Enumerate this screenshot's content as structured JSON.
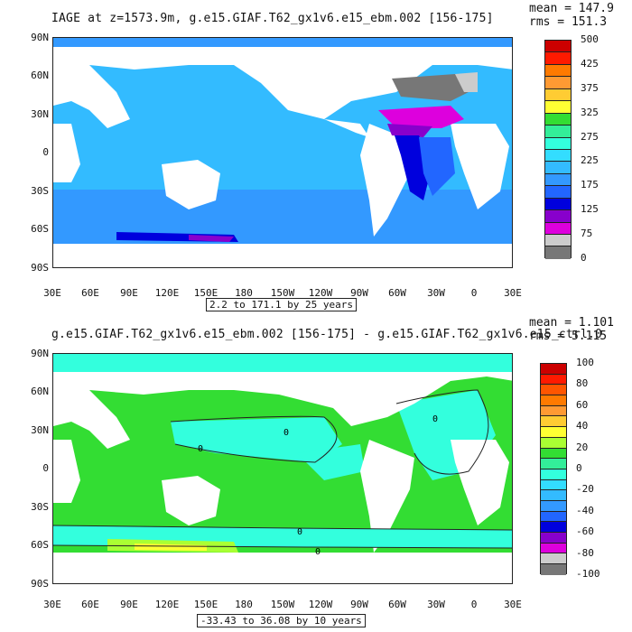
{
  "top": {
    "title": "IAGE at z=1573.9m, g.e15.GIAF.T62_gx1v6.e15_ebm.002 [156-175]",
    "mean": "mean = 147.9",
    "rms": "rms = 151.3",
    "range": "2.2 to 171.1 by 25 years",
    "colorbar_labels": [
      "500",
      "425",
      "375",
      "325",
      "275",
      "225",
      "175",
      "125",
      "75",
      "0"
    ],
    "colorbar_colors": [
      "#cc0000",
      "#ff1a00",
      "#ff7a00",
      "#ff9a33",
      "#ffcc33",
      "#ffff33",
      "#33dd33",
      "#33ee99",
      "#33ffdd",
      "#33ddff",
      "#33bbff",
      "#3399ff",
      "#2266ff",
      "#0000dd",
      "#8800cc",
      "#dd00dd",
      "#cccccc",
      "#777777"
    ]
  },
  "bottom": {
    "title": "g.e15.GIAF.T62_gx1v6.e15_ebm.002 [156-175] - g.e15.GIAF.T62_gx1v6.e15_ctrl.0",
    "mean": "mean = 1.101",
    "rms": "rms = 5.115",
    "range": "-33.43 to 36.08 by 10 years",
    "colorbar_labels": [
      "100",
      "80",
      "60",
      "40",
      "20",
      "0",
      "-20",
      "-40",
      "-60",
      "-80",
      "-100"
    ],
    "colorbar_colors": [
      "#cc0000",
      "#ff1a00",
      "#ff5500",
      "#ff7a00",
      "#ff9a33",
      "#ffcc33",
      "#ffff33",
      "#aaff33",
      "#33dd33",
      "#33ee99",
      "#33ffdd",
      "#33ddff",
      "#33bbff",
      "#3399ff",
      "#2266ff",
      "#0000dd",
      "#8800cc",
      "#dd00dd",
      "#cccccc",
      "#777777"
    ]
  },
  "axes": {
    "lat_labels": [
      "90N",
      "60N",
      "30N",
      "0",
      "30S",
      "60S",
      "90S"
    ],
    "lon_labels": [
      "30E",
      "60E",
      "90E",
      "120E",
      "150E",
      "180",
      "150W",
      "120W",
      "90W",
      "60W",
      "30W",
      "0",
      "30E"
    ]
  },
  "contour_labels": [
    "0",
    "0",
    "0",
    "0",
    "0"
  ],
  "colors": {
    "ocean_top": "#33bbff",
    "deep_top": "#3399ff",
    "ocean_bottom_mid": "#33dd33",
    "ocean_bottom_cyan": "#33ffdd",
    "land": "#ffffff"
  }
}
